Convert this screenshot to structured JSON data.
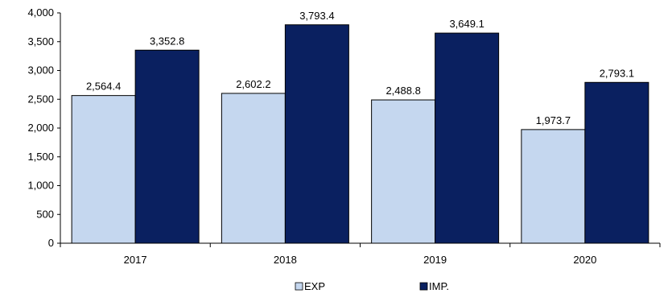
{
  "chart_data": {
    "type": "bar",
    "categories": [
      "2017",
      "2018",
      "2019",
      "2020"
    ],
    "series": [
      {
        "name": "EXP",
        "values": [
          2564.4,
          2602.2,
          2488.8,
          1973.7
        ],
        "labels": [
          "2,564.4",
          "2,602.2",
          "2,488.8",
          "1,973.7"
        ],
        "color": "#c5d7ef"
      },
      {
        "name": "IMP.",
        "values": [
          3352.8,
          3793.4,
          3649.1,
          2793.1
        ],
        "labels": [
          "3,352.8",
          "3,793.4",
          "3,649.1",
          "2,793.1"
        ],
        "color": "#0a2060"
      }
    ],
    "ylim": [
      0,
      4000
    ],
    "yticks": [
      0,
      500,
      1000,
      1500,
      2000,
      2500,
      3000,
      3500,
      4000
    ],
    "ytick_labels": [
      "0",
      "500",
      "1,000",
      "1,500",
      "2,000",
      "2,500",
      "3,000",
      "3,500",
      "4,000"
    ],
    "title": "",
    "xlabel": "",
    "ylabel": "",
    "grid": false,
    "legend": "bottom-center"
  }
}
